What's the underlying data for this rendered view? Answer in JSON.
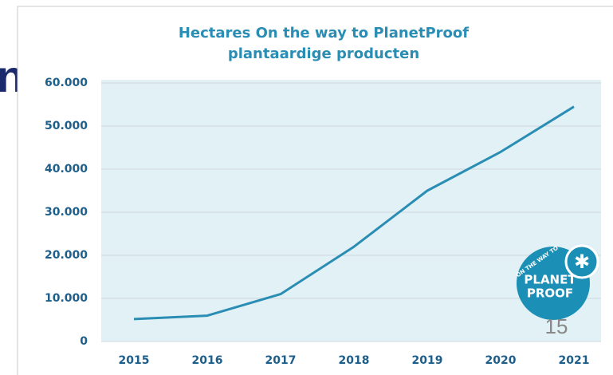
{
  "side_text": "n",
  "page_number": "15",
  "logo": {
    "arc_text": "ON THE WAY TO",
    "line1": "PLANET",
    "line2": "PROOF"
  },
  "chart_data": {
    "type": "line",
    "title": [
      "Hectares On the way to PlanetProof",
      "plantaardige producten"
    ],
    "categories": [
      "2015",
      "2016",
      "2017",
      "2018",
      "2019",
      "2020",
      "2021"
    ],
    "series": [
      {
        "name": "Hectares",
        "color": "#2a8db3",
        "values": [
          5200,
          6000,
          11000,
          22000,
          35000,
          44000,
          54500
        ]
      }
    ],
    "ylim": [
      0,
      60000
    ],
    "yticks": [
      0,
      {
        "value": 10000,
        "label": "10.000"
      },
      {
        "value": 20000,
        "label": "20.000"
      },
      {
        "value": 30000,
        "label": "30.000"
      },
      {
        "value": 40000,
        "label": "40.000"
      },
      {
        "value": 50000,
        "label": "50.000"
      },
      {
        "value": 60000,
        "label": "60.000"
      }
    ],
    "grid": true
  }
}
